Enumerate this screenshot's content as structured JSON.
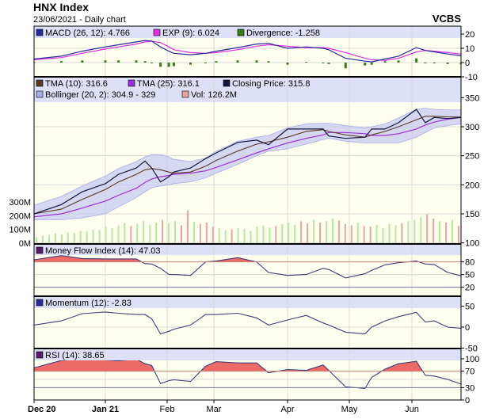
{
  "header": {
    "title": "HNX Index",
    "subtitle": "23/06/2021 - Daily chart",
    "brand": "VCBS"
  },
  "colors": {
    "background": "#FFFFF0",
    "legend_band": "#DDE0F6",
    "grid": "#D8D8D8",
    "macd": "#2828A0",
    "exp": "#E030E0",
    "divergence": "#3A7A1A",
    "tma10": "#5A3A22",
    "tma25": "#9A30D8",
    "close": "#14143C",
    "bollinger_fill": "#C8CAF2",
    "bollinger_edge": "#A8ACE6",
    "vol_up": "#B4E8A0",
    "vol_down": "#E4A4A0",
    "indicator_line": "#3C3C7A",
    "overbought_fill": "#EE6A66",
    "level_high": "#C88070",
    "level_low": "#7070A0"
  },
  "legends": {
    "macd": [
      {
        "label": "MACD (26, 12): 4.766",
        "color": "#2828A0"
      },
      {
        "label": "EXP (9): 6.024",
        "color": "#E030E0"
      },
      {
        "label": "Divergence: -1.258",
        "color": "#3A7A1A"
      }
    ],
    "price_row1": [
      {
        "label": "TMA (10): 316.6",
        "color": "#5A3A22"
      },
      {
        "label": "TMA (25): 316.1",
        "color": "#9A30D8"
      },
      {
        "label": "Closing Price: 315.8",
        "color": "#14143C"
      }
    ],
    "price_row2": [
      {
        "label": "Bollinger (20, 2): 304.9 - 329",
        "color": "#A8ACE6"
      },
      {
        "label": "Vol: 126.2M",
        "color": "#E4A4A0"
      }
    ],
    "mfi": {
      "label": "Money Flow Index (14): 47.03",
      "color": "#5A1A6A"
    },
    "momentum": {
      "label": "Momentum (12): -2.83",
      "color": "#2828A0"
    },
    "rsi": {
      "label": "RSI (14): 38.65",
      "color": "#5A1A6A"
    }
  },
  "chart_data": {
    "type": "line",
    "x_ticks": [
      {
        "label": "Dec 20",
        "date": "2020-12-01",
        "bold": true
      },
      {
        "label": "Jan 21",
        "date": "2021-01-04",
        "bold": true
      },
      {
        "label": "Feb",
        "date": "2021-02-01",
        "bold": false
      },
      {
        "label": "Mar",
        "date": "2021-03-01",
        "bold": false
      },
      {
        "label": "Apr",
        "date": "2021-04-01",
        "bold": false
      },
      {
        "label": "May",
        "date": "2021-05-04",
        "bold": false
      },
      {
        "label": "Jun",
        "date": "2021-06-01",
        "bold": false
      }
    ],
    "x_end": "2021-06-23",
    "dates": [
      "2020-12-01",
      "2020-12-14",
      "2020-12-24",
      "2021-01-04",
      "2021-01-10",
      "2021-01-18",
      "2021-01-22",
      "2021-01-25",
      "2021-01-29",
      "2021-02-02",
      "2021-02-05",
      "2021-02-15",
      "2021-02-24",
      "2021-03-02",
      "2021-03-11",
      "2021-03-19",
      "2021-03-24",
      "2021-04-01",
      "2021-04-11",
      "2021-04-20",
      "2021-04-23",
      "2021-05-02",
      "2021-05-11",
      "2021-05-14",
      "2021-05-20",
      "2021-05-26",
      "2021-06-03",
      "2021-06-07",
      "2021-06-11",
      "2021-06-17",
      "2021-06-23"
    ],
    "panels": {
      "macd": {
        "y_ticks": [
          20,
          10,
          0,
          -10
        ],
        "ylim": [
          -10,
          24
        ],
        "macd": [
          2.5,
          4.5,
          8,
          11,
          12.5,
          14.5,
          15.5,
          15,
          11,
          8,
          6.5,
          5.5,
          6.5,
          8,
          10.5,
          13,
          13.5,
          10,
          11,
          10,
          9,
          3,
          1,
          0.5,
          2.5,
          4.5,
          10.5,
          8.5,
          7.5,
          6,
          4.766
        ],
        "exp": [
          2,
          3.5,
          6.5,
          9.5,
          11,
          13,
          14.5,
          15,
          14,
          11,
          9,
          7,
          6.5,
          7,
          9,
          11.5,
          12.5,
          11.5,
          10.5,
          10.5,
          10,
          7,
          3,
          2,
          1.5,
          3,
          7.5,
          8.5,
          8,
          7,
          6.024
        ],
        "divergence": [
          0.5,
          1,
          1.5,
          1.5,
          1.5,
          1.5,
          1,
          0,
          -3,
          -3,
          -2.5,
          -1.5,
          0,
          1,
          1.5,
          1.5,
          1,
          -1.5,
          0.5,
          -0.5,
          -1,
          -4,
          -2,
          -1.5,
          1,
          1.5,
          3,
          0,
          -0.5,
          -1,
          -1.258
        ]
      },
      "price": {
        "y_ticks": [
          350,
          300,
          250,
          200,
          150,
          100
        ],
        "ylim": [
          100,
          350
        ],
        "close": [
          150,
          166,
          188,
          202,
          218,
          229,
          241,
          229,
          205,
          214,
          222,
          229,
          245,
          255,
          273,
          277,
          269,
          296,
          296,
          296,
          284,
          280,
          282,
          296,
          296,
          307,
          330,
          307,
          316,
          314,
          315.8
        ],
        "tma10": [
          150,
          158,
          175,
          192,
          205,
          218,
          226,
          228,
          226,
          222,
          220,
          222,
          232,
          242,
          258,
          270,
          274,
          282,
          292,
          295,
          292,
          286,
          282,
          286,
          292,
          300,
          312,
          318,
          318,
          317,
          316.6
        ],
        "tma25": [
          145,
          150,
          160,
          172,
          182,
          194,
          204,
          210,
          214,
          216,
          218,
          220,
          224,
          230,
          243,
          255,
          262,
          272,
          280,
          286,
          290,
          290,
          288,
          285,
          285,
          288,
          296,
          303,
          308,
          313,
          316.1
        ],
        "bollinger_upper": [
          165,
          180,
          198,
          215,
          228,
          240,
          248,
          252,
          252,
          248,
          244,
          240,
          246,
          258,
          275,
          282,
          285,
          298,
          305,
          306,
          306,
          302,
          298,
          300,
          305,
          315,
          330,
          332,
          330,
          329,
          329
        ],
        "bollinger_lower": [
          140,
          140,
          143,
          150,
          162,
          178,
          188,
          195,
          198,
          200,
          202,
          205,
          212,
          220,
          235,
          250,
          258,
          262,
          270,
          278,
          280,
          275,
          272,
          272,
          272,
          272,
          282,
          290,
          298,
          302,
          304.9
        ]
      },
      "volume": {
        "unit": "M",
        "y_ticks": [
          "300M",
          "200M",
          "100M",
          "0M"
        ],
        "tick_values": [
          300,
          200,
          100,
          0
        ],
        "start": "2020-12-01",
        "end": "2021-06-23",
        "values": [
          45,
          55,
          60,
          70,
          65,
          80,
          75,
          90,
          85,
          100,
          95,
          120,
          110,
          130,
          150,
          125,
          140,
          160,
          135,
          150,
          170,
          145,
          160,
          130,
          240,
          155,
          140,
          150,
          120,
          110,
          95,
          100,
          110,
          105,
          90,
          120,
          130,
          115,
          125,
          140,
          150,
          135,
          160,
          145,
          170,
          150,
          160,
          180,
          165,
          140,
          130,
          150,
          125,
          120,
          135,
          110,
          140,
          130,
          145,
          160,
          170,
          190,
          210,
          180,
          160,
          150,
          170,
          126.2
        ],
        "up": [
          1,
          1,
          1,
          1,
          1,
          1,
          1,
          1,
          1,
          1,
          1,
          1,
          1,
          1,
          1,
          0,
          1,
          1,
          1,
          1,
          0,
          1,
          1,
          0,
          0,
          1,
          0,
          0,
          0,
          1,
          1,
          0,
          1,
          1,
          1,
          1,
          1,
          1,
          0,
          1,
          1,
          1,
          0,
          0,
          1,
          0,
          1,
          1,
          0,
          0,
          0,
          1,
          0,
          0,
          1,
          1,
          1,
          1,
          0,
          1,
          1,
          1,
          0,
          0,
          1,
          0,
          1,
          0
        ]
      },
      "mfi": {
        "y_ticks": [
          80,
          50,
          20
        ],
        "ylim": [
          0,
          100
        ],
        "levels": [
          80,
          20
        ],
        "values": [
          85,
          95,
          88,
          87,
          87,
          87,
          76,
          75,
          65,
          50,
          50,
          48,
          80,
          82,
          90,
          80,
          55,
          48,
          50,
          65,
          62,
          42,
          52,
          60,
          73,
          78,
          82,
          75,
          74,
          55,
          47.03
        ]
      },
      "momentum": {
        "y_ticks": [
          50,
          0,
          -50
        ],
        "ylim": [
          -50,
          50
        ],
        "values": [
          5,
          15,
          32,
          36,
          33,
          30,
          30,
          20,
          -16,
          -10,
          -5,
          5,
          30,
          30,
          33,
          22,
          5,
          17,
          28,
          10,
          5,
          -12,
          -16,
          0,
          15,
          25,
          35,
          12,
          15,
          0,
          -2.83
        ]
      },
      "rsi": {
        "y_ticks": [
          100,
          70,
          30,
          0
        ],
        "ylim": [
          0,
          100
        ],
        "levels": [
          70,
          30
        ],
        "values": [
          78,
          96,
          100,
          97,
          95,
          99,
          88,
          84,
          40,
          47,
          49,
          45,
          82,
          93,
          90,
          90,
          66,
          74,
          72,
          85,
          72,
          32,
          28,
          55,
          75,
          88,
          94,
          60,
          58,
          50,
          38.65
        ]
      }
    }
  }
}
